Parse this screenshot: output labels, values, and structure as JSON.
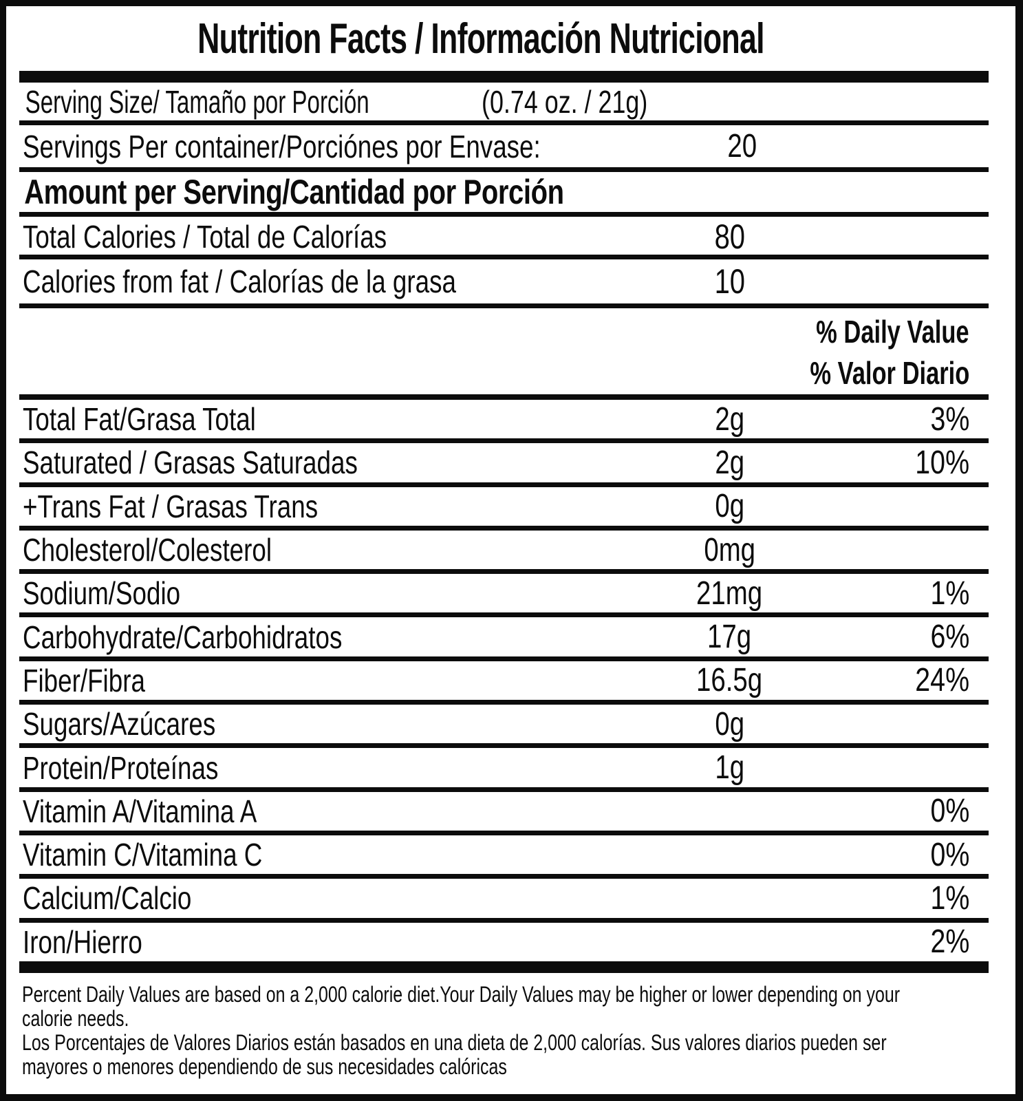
{
  "title": "Nutrition Facts / Información Nutricional",
  "serving": {
    "label": "Serving Size/ Tamaño por Porción",
    "value": "(0.74 oz. / 21g)"
  },
  "servings_per_container": {
    "label": "Servings Per container/Porciónes por Envase:",
    "value": "20"
  },
  "amount_header": "Amount per Serving/Cantidad por Porción",
  "calories": [
    {
      "label": "Total Calories / Total de Calorías",
      "value": "80"
    },
    {
      "label": "Calories from fat / Calorías de la grasa",
      "value": "10"
    }
  ],
  "daily_value_header": {
    "en": "% Daily Value",
    "es": "% Valor Diario"
  },
  "nutrients": [
    {
      "label": "Total Fat/Grasa Total",
      "amount": "2g",
      "dv": "3%"
    },
    {
      "label": "Saturated / Grasas Saturadas",
      "amount": "2g",
      "dv": "10%"
    },
    {
      "label": "+Trans Fat / Grasas Trans",
      "amount": "0g",
      "dv": ""
    },
    {
      "label": "Cholesterol/Colesterol",
      "amount": "0mg",
      "dv": ""
    },
    {
      "label": "Sodium/Sodio",
      "amount": "21mg",
      "dv": "1%"
    },
    {
      "label": "Carbohydrate/Carbohidratos",
      "amount": "17g",
      "dv": "6%"
    },
    {
      "label": "Fiber/Fibra",
      "amount": "16.5g",
      "dv": "24%"
    },
    {
      "label": "Sugars/Azúcares",
      "amount": "0g",
      "dv": ""
    },
    {
      "label": "Protein/Proteínas",
      "amount": "1g",
      "dv": ""
    },
    {
      "label": "Vitamin A/Vitamina A",
      "amount": "",
      "dv": "0%"
    },
    {
      "label": "Vitamin C/Vitamina C",
      "amount": "",
      "dv": "0%"
    },
    {
      "label": "Calcium/Calcio",
      "amount": "",
      "dv": "1%"
    },
    {
      "label": "Iron/Hierro",
      "amount": "",
      "dv": "2%"
    }
  ],
  "footnote": {
    "lines": [
      "Percent Daily Values are based on a 2,000 calorie diet.Your Daily Values may be higher or lower depending on your",
      "calorie needs.",
      "Los Porcentajes de Valores Diarios están basados en una dieta de 2,000 calorías. Sus valores diarios pueden ser",
      "mayores o menores dependiendo de sus necesidades calóricas"
    ]
  },
  "colors": {
    "ink": "#0c0c0c",
    "paper": "#ffffff"
  }
}
